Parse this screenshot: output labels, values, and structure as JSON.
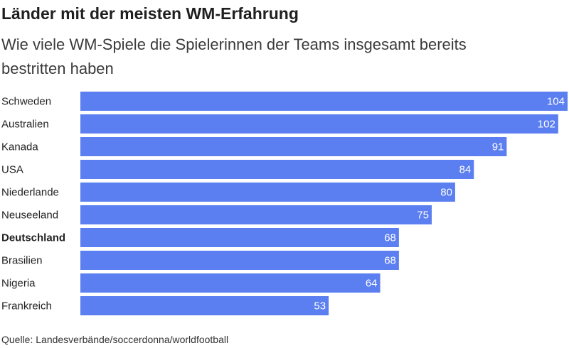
{
  "chart_data": {
    "type": "bar",
    "orientation": "horizontal",
    "title": "Länder mit der meisten WM-Erfahrung",
    "subtitle": "Wie viele WM-Spiele die Spielerinnen der Teams insgesamt bereits bestritten haben",
    "categories": [
      "Schweden",
      "Australien",
      "Kanada",
      "USA",
      "Niederlande",
      "Neuseeland",
      "Deutschland",
      "Brasilien",
      "Nigeria",
      "Frankreich"
    ],
    "values": [
      104,
      102,
      91,
      84,
      80,
      75,
      68,
      68,
      64,
      53
    ],
    "highlight": "Deutschland",
    "bar_color": "#5b7ff1",
    "value_label_color": "#ffffff",
    "xlim": [
      0,
      104
    ],
    "grid": false,
    "legend": "none",
    "source": "Quelle: Landesverbände/soccerdonna/worldfootball"
  }
}
